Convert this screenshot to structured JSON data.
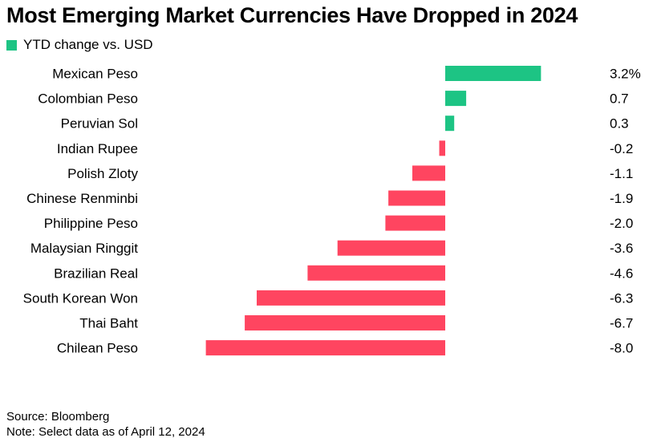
{
  "chart_data": {
    "type": "bar",
    "orientation": "horizontal",
    "title": "Most Emerging Market Currencies Have Dropped in 2024",
    "legend": [
      {
        "label": "YTD change vs. USD",
        "color": "#1dc484"
      }
    ],
    "categories": [
      "Mexican Peso",
      "Colombian Peso",
      "Peruvian Sol",
      "Indian Rupee",
      "Polish Zloty",
      "Chinese Renminbi",
      "Philippine Peso",
      "Malaysian Ringgit",
      "Brazilian Real",
      "South Korean Won",
      "Thai Baht",
      "Chilean Peso"
    ],
    "values": [
      3.2,
      0.7,
      0.3,
      -0.2,
      -1.1,
      -1.9,
      -2.0,
      -3.6,
      -4.6,
      -6.3,
      -6.7,
      -8.0
    ],
    "value_labels": [
      "3.2%",
      "0.7",
      "0.3",
      "-0.2",
      "-1.1",
      "-1.9",
      "-2.0",
      "-3.6",
      "-4.6",
      "-6.3",
      "-6.7",
      "-8.0"
    ],
    "xlim": [
      -8.0,
      3.2
    ],
    "xlabel": "",
    "ylabel": "",
    "grid": false,
    "colors": {
      "positive": "#1dc484",
      "negative": "#ff4560"
    }
  },
  "footer": {
    "source": "Source: Bloomberg",
    "note": "Note: Select data as of April 12, 2024"
  }
}
